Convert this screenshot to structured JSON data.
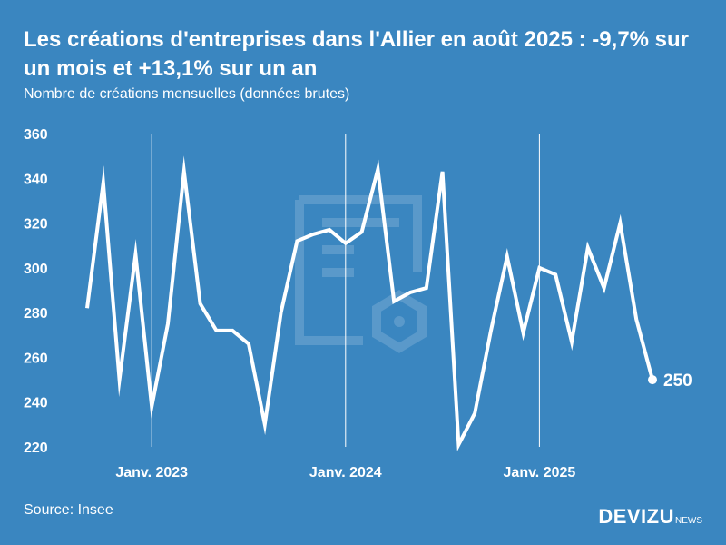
{
  "title": "Les créations d'entreprises dans l'Allier en août 2025 : -9,7% sur un mois et +13,1% sur un an",
  "subtitle": "Nombre de créations mensuelles (données brutes)",
  "source": "Source: Insee",
  "brand": {
    "name": "DEVIZU",
    "suffix": "NEWS"
  },
  "colors": {
    "background": "#3a86c0",
    "line": "#ffffff",
    "watermark": "#5e9ccc"
  },
  "chart_data": {
    "type": "line",
    "title": "Les créations d'entreprises dans l'Allier en août 2025 : -9,7% sur un mois et +13,1% sur un an",
    "ylabel": "Nombre de créations mensuelles (données brutes)",
    "xlabel": "",
    "ylim": [
      220,
      360
    ],
    "yticks": [
      220,
      240,
      260,
      280,
      300,
      320,
      340,
      360
    ],
    "x": [
      "2022-09",
      "2022-10",
      "2022-11",
      "2022-12",
      "2023-01",
      "2023-02",
      "2023-03",
      "2023-04",
      "2023-05",
      "2023-06",
      "2023-07",
      "2023-08",
      "2023-09",
      "2023-10",
      "2023-11",
      "2023-12",
      "2024-01",
      "2024-02",
      "2024-03",
      "2024-04",
      "2024-05",
      "2024-06",
      "2024-07",
      "2024-08",
      "2024-09",
      "2024-10",
      "2024-11",
      "2024-12",
      "2025-01",
      "2025-02",
      "2025-03",
      "2025-04",
      "2025-05",
      "2025-06",
      "2025-07",
      "2025-08"
    ],
    "values": [
      282,
      338,
      250,
      306,
      238,
      275,
      343,
      284,
      272,
      272,
      266,
      230,
      280,
      312,
      315,
      317,
      311,
      316,
      344,
      285,
      289,
      291,
      343,
      221,
      235,
      272,
      305,
      271,
      300,
      297,
      267,
      309,
      291,
      320,
      277,
      250
    ],
    "xtick_labels": [
      {
        "label": "Janv. 2023",
        "index": 4
      },
      {
        "label": "Janv. 2024",
        "index": 16
      },
      {
        "label": "Janv. 2025",
        "index": 28
      }
    ],
    "end_label": "250",
    "grid": false
  }
}
